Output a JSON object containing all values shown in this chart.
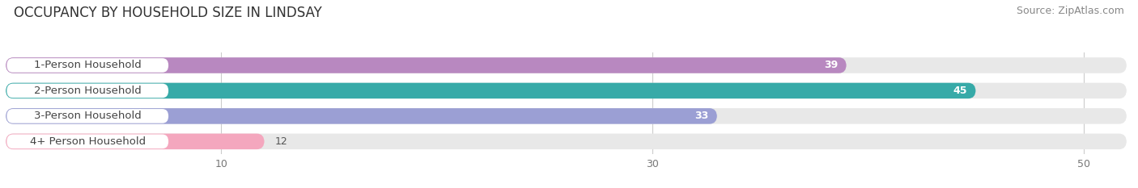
{
  "title": "OCCUPANCY BY HOUSEHOLD SIZE IN LINDSAY",
  "source": "Source: ZipAtlas.com",
  "categories": [
    "1-Person Household",
    "2-Person Household",
    "3-Person Household",
    "4+ Person Household"
  ],
  "values": [
    39,
    45,
    33,
    12
  ],
  "bar_colors": [
    "#b888c0",
    "#37aaa8",
    "#9b9fd4",
    "#f4a7be"
  ],
  "xlim_max": 52,
  "xticks": [
    10,
    30,
    50
  ],
  "background_color": "#ffffff",
  "bar_background": "#e8e8e8",
  "title_fontsize": 12,
  "source_fontsize": 9,
  "label_fontsize": 9.5,
  "value_fontsize": 9
}
